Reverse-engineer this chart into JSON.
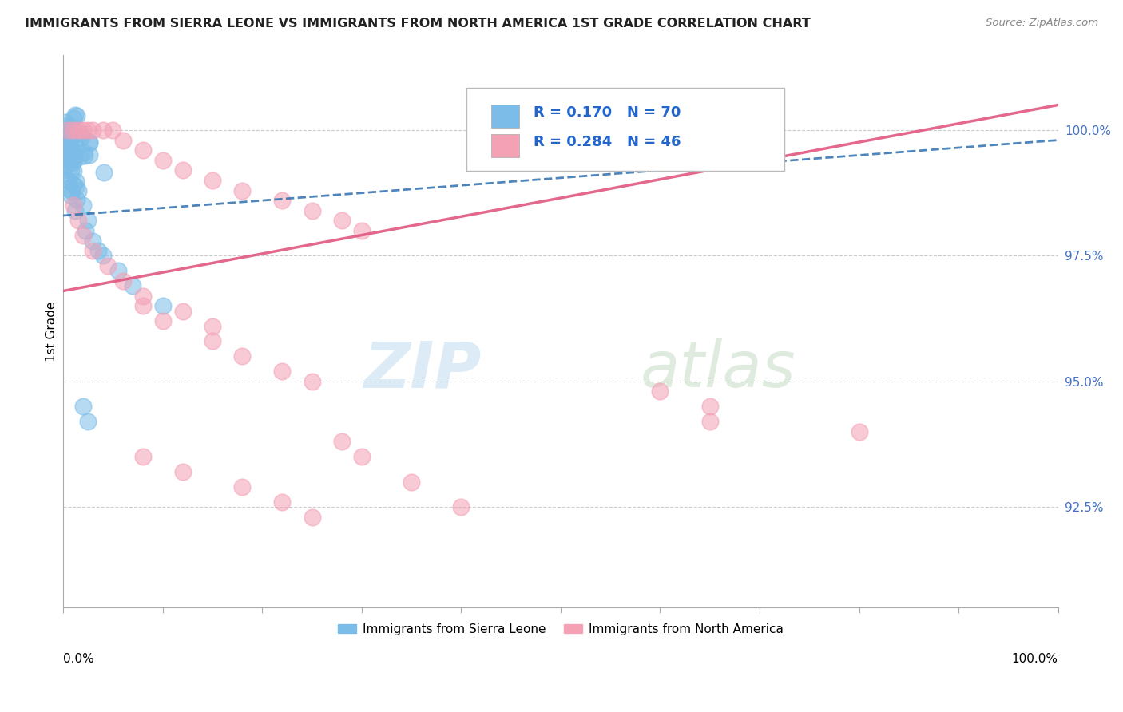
{
  "title": "IMMIGRANTS FROM SIERRA LEONE VS IMMIGRANTS FROM NORTH AMERICA 1ST GRADE CORRELATION CHART",
  "source": "Source: ZipAtlas.com",
  "ylabel": "1st Grade",
  "xlim": [
    0.0,
    100.0
  ],
  "ylim": [
    90.5,
    101.5
  ],
  "y_ticks": [
    92.5,
    95.0,
    97.5,
    100.0
  ],
  "y_tick_labels": [
    "92.5%",
    "95.0%",
    "97.5%",
    "100.0%"
  ],
  "legend_r1": "0.170",
  "legend_n1": "70",
  "legend_r2": "0.284",
  "legend_n2": "46",
  "color_blue": "#7bbde8",
  "color_pink": "#f4a0b5",
  "color_blue_line": "#3070b0",
  "color_pink_line": "#e05880",
  "watermark_zip": "ZIP",
  "watermark_atlas": "atlas"
}
